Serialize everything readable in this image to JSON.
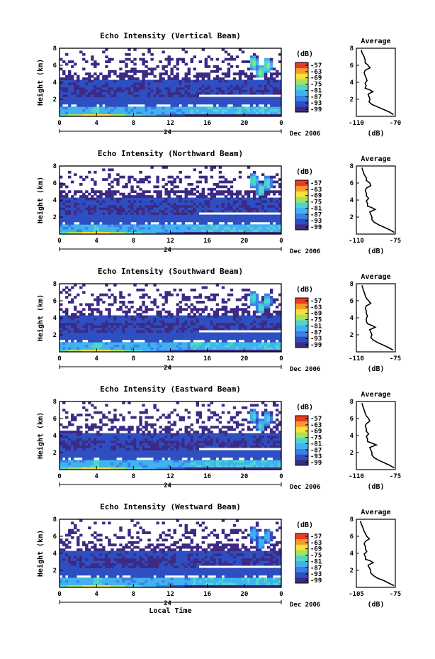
{
  "figure": {
    "xlabel": "Local Time",
    "date_label": "Dec 2006",
    "day_marker": "24",
    "colorbar_unit": "(dB)",
    "average_title": "Average",
    "average_xlabel": "(dB)"
  },
  "colorbar": {
    "ticks": [
      "-57",
      "-63",
      "-69",
      "-75",
      "-81",
      "-87",
      "-93",
      "-99"
    ],
    "colors": [
      "#3c2a84",
      "#2e4fc2",
      "#3c7fe6",
      "#41b2ef",
      "#4fd6c8",
      "#a6e35a",
      "#f5e23c",
      "#f79a2e",
      "#e83b23"
    ]
  },
  "chart_data": [
    {
      "type": "heatmap",
      "title": "Echo Intensity (Vertical Beam)",
      "ylabel": "Height (km)",
      "x_ticks": [
        "0",
        "4",
        "8",
        "12",
        "16",
        "20",
        "0"
      ],
      "y_ticks": [
        "8",
        "6",
        "4",
        "2"
      ],
      "xlim": [
        0,
        24
      ],
      "ylim": [
        0,
        8
      ],
      "zlim": [
        -99,
        -57
      ],
      "average": {
        "x_ticks": [
          "-110",
          "-70"
        ],
        "y_ticks": [
          "8",
          "6",
          "4",
          "2"
        ],
        "xlim": [
          -110,
          -70
        ],
        "profile": [
          [
            -72,
            0.2
          ],
          [
            -76,
            0.5
          ],
          [
            -82,
            0.8
          ],
          [
            -88,
            1.1
          ],
          [
            -94,
            1.4
          ],
          [
            -97,
            1.7
          ],
          [
            -96,
            2.0
          ],
          [
            -97,
            2.3
          ],
          [
            -98,
            2.6
          ],
          [
            -93,
            2.9
          ],
          [
            -96,
            3.1
          ],
          [
            -101,
            3.3
          ],
          [
            -100,
            3.6
          ],
          [
            -101,
            3.9
          ],
          [
            -99,
            4.2
          ],
          [
            -100,
            4.5
          ],
          [
            -101,
            4.8
          ],
          [
            -102,
            5.1
          ],
          [
            -101,
            5.4
          ],
          [
            -96,
            5.7
          ],
          [
            -98,
            6.0
          ],
          [
            -101,
            6.3
          ],
          [
            -101,
            6.6
          ],
          [
            -102,
            7.0
          ],
          [
            -104,
            7.4
          ],
          [
            -105,
            7.8
          ]
        ]
      }
    },
    {
      "type": "heatmap",
      "title": "Echo Intensity (Northward Beam)",
      "ylabel": "Height (km)",
      "x_ticks": [
        "0",
        "4",
        "8",
        "12",
        "16",
        "20",
        "0"
      ],
      "y_ticks": [
        "8",
        "6",
        "4",
        "2"
      ],
      "xlim": [
        0,
        24
      ],
      "ylim": [
        0,
        8
      ],
      "zlim": [
        -99,
        -57
      ],
      "average": {
        "x_ticks": [
          "-110",
          "-75"
        ],
        "y_ticks": [
          "8",
          "6",
          "4",
          "2"
        ],
        "xlim": [
          -110,
          -75
        ],
        "profile": [
          [
            -76,
            0.2
          ],
          [
            -80,
            0.5
          ],
          [
            -85,
            0.8
          ],
          [
            -90,
            1.1
          ],
          [
            -94,
            1.4
          ],
          [
            -96,
            1.7
          ],
          [
            -96,
            2.0
          ],
          [
            -97,
            2.3
          ],
          [
            -98,
            2.6
          ],
          [
            -93,
            2.9
          ],
          [
            -96,
            3.1
          ],
          [
            -100,
            3.3
          ],
          [
            -100,
            3.6
          ],
          [
            -101,
            3.9
          ],
          [
            -99,
            4.2
          ],
          [
            -101,
            4.5
          ],
          [
            -101,
            4.8
          ],
          [
            -102,
            5.1
          ],
          [
            -101,
            5.4
          ],
          [
            -97,
            5.7
          ],
          [
            -98,
            6.0
          ],
          [
            -101,
            6.3
          ],
          [
            -101,
            6.6
          ],
          [
            -103,
            7.0
          ],
          [
            -104,
            7.4
          ],
          [
            -105,
            7.8
          ]
        ]
      }
    },
    {
      "type": "heatmap",
      "title": "Echo Intensity (Southward Beam)",
      "ylabel": "Height (km)",
      "x_ticks": [
        "0",
        "4",
        "8",
        "12",
        "16",
        "20",
        "0"
      ],
      "y_ticks": [
        "8",
        "6",
        "4",
        "2"
      ],
      "xlim": [
        0,
        24
      ],
      "ylim": [
        0,
        8
      ],
      "zlim": [
        -99,
        -57
      ],
      "average": {
        "x_ticks": [
          "-110",
          "-75"
        ],
        "y_ticks": [
          "8",
          "6",
          "4",
          "2"
        ],
        "xlim": [
          -110,
          -75
        ],
        "profile": [
          [
            -77,
            0.2
          ],
          [
            -81,
            0.5
          ],
          [
            -86,
            0.8
          ],
          [
            -91,
            1.1
          ],
          [
            -95,
            1.4
          ],
          [
            -97,
            1.7
          ],
          [
            -96,
            2.0
          ],
          [
            -97,
            2.3
          ],
          [
            -98,
            2.6
          ],
          [
            -93,
            2.9
          ],
          [
            -96,
            3.1
          ],
          [
            -100,
            3.3
          ],
          [
            -101,
            3.6
          ],
          [
            -101,
            3.9
          ],
          [
            -100,
            4.2
          ],
          [
            -101,
            4.5
          ],
          [
            -101,
            4.8
          ],
          [
            -102,
            5.1
          ],
          [
            -101,
            5.4
          ],
          [
            -97,
            5.7
          ],
          [
            -99,
            6.0
          ],
          [
            -101,
            6.3
          ],
          [
            -102,
            6.6
          ],
          [
            -103,
            7.0
          ],
          [
            -104,
            7.4
          ],
          [
            -105,
            7.8
          ]
        ]
      }
    },
    {
      "type": "heatmap",
      "title": "Echo Intensity (Eastward Beam)",
      "ylabel": "Height (km)",
      "x_ticks": [
        "0",
        "4",
        "8",
        "12",
        "16",
        "20",
        "0"
      ],
      "y_ticks": [
        "8",
        "6",
        "4",
        "2"
      ],
      "xlim": [
        0,
        24
      ],
      "ylim": [
        0,
        8
      ],
      "zlim": [
        -99,
        -57
      ],
      "average": {
        "x_ticks": [
          "-110",
          "-75"
        ],
        "y_ticks": [
          "8",
          "6",
          "4",
          "2"
        ],
        "xlim": [
          -110,
          -75
        ],
        "profile": [
          [
            -76,
            0.2
          ],
          [
            -80,
            0.5
          ],
          [
            -85,
            0.8
          ],
          [
            -90,
            1.1
          ],
          [
            -94,
            1.4
          ],
          [
            -96,
            1.7
          ],
          [
            -96,
            2.0
          ],
          [
            -97,
            2.3
          ],
          [
            -98,
            2.6
          ],
          [
            -92,
            2.9
          ],
          [
            -96,
            3.1
          ],
          [
            -100,
            3.3
          ],
          [
            -100,
            3.6
          ],
          [
            -101,
            3.9
          ],
          [
            -99,
            4.2
          ],
          [
            -101,
            4.5
          ],
          [
            -101,
            4.8
          ],
          [
            -102,
            5.1
          ],
          [
            -101,
            5.4
          ],
          [
            -98,
            5.7
          ],
          [
            -99,
            6.0
          ],
          [
            -101,
            6.3
          ],
          [
            -102,
            6.6
          ],
          [
            -103,
            7.0
          ],
          [
            -104,
            7.4
          ],
          [
            -105,
            7.8
          ]
        ]
      }
    },
    {
      "type": "heatmap",
      "title": "Echo Intensity (Westward Beam)",
      "ylabel": "Height (km)",
      "x_ticks": [
        "0",
        "4",
        "8",
        "12",
        "16",
        "20",
        "0"
      ],
      "y_ticks": [
        "8",
        "6",
        "4",
        "2"
      ],
      "xlim": [
        0,
        24
      ],
      "ylim": [
        0,
        8
      ],
      "zlim": [
        -99,
        -57
      ],
      "average": {
        "x_ticks": [
          "-105",
          "-75"
        ],
        "y_ticks": [
          "8",
          "6",
          "4",
          "2"
        ],
        "xlim": [
          -105,
          -75
        ],
        "profile": [
          [
            -76,
            0.2
          ],
          [
            -80,
            0.5
          ],
          [
            -84,
            0.8
          ],
          [
            -89,
            1.1
          ],
          [
            -92,
            1.4
          ],
          [
            -94,
            1.7
          ],
          [
            -94,
            2.0
          ],
          [
            -95,
            2.3
          ],
          [
            -96,
            2.6
          ],
          [
            -92,
            2.9
          ],
          [
            -94,
            3.1
          ],
          [
            -98,
            3.3
          ],
          [
            -98,
            3.6
          ],
          [
            -99,
            3.9
          ],
          [
            -97,
            4.2
          ],
          [
            -98,
            4.5
          ],
          [
            -98,
            4.8
          ],
          [
            -99,
            5.1
          ],
          [
            -98,
            5.4
          ],
          [
            -95,
            5.7
          ],
          [
            -97,
            6.0
          ],
          [
            -98,
            6.3
          ],
          [
            -99,
            6.6
          ],
          [
            -100,
            7.0
          ],
          [
            -101,
            7.4
          ],
          [
            -102,
            7.8
          ]
        ]
      }
    }
  ]
}
